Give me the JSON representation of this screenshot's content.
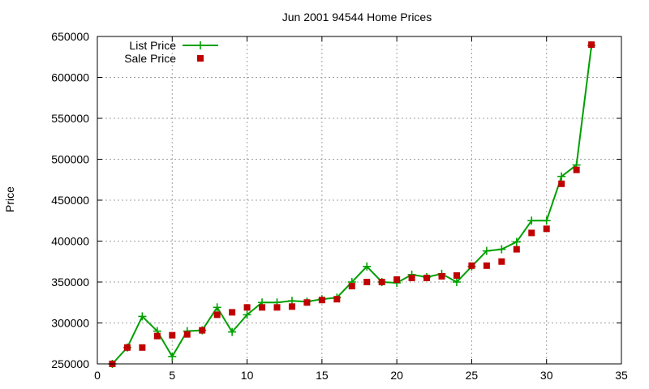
{
  "chart_data": {
    "type": "line",
    "title": "Jun 2001 94544 Home Prices",
    "xlabel": "",
    "ylabel": "Price",
    "xlim": [
      0,
      35
    ],
    "ylim": [
      250000,
      650000
    ],
    "xticks": [
      0,
      5,
      10,
      15,
      20,
      25,
      30,
      35
    ],
    "yticks": [
      250000,
      300000,
      350000,
      400000,
      450000,
      500000,
      550000,
      600000,
      650000
    ],
    "grid": true,
    "legend_position": "top-left",
    "series": [
      {
        "name": "List Price",
        "style": "line-with-plus-markers",
        "color": "#00a000",
        "points": [
          [
            1,
            250000
          ],
          [
            2,
            270000
          ],
          [
            3,
            308000
          ],
          [
            4,
            290000
          ],
          [
            5,
            259000
          ],
          [
            6,
            290000
          ],
          [
            7,
            291000
          ],
          [
            8,
            319000
          ],
          [
            9,
            289000
          ],
          [
            10,
            310000
          ],
          [
            11,
            325000
          ],
          [
            12,
            325000
          ],
          [
            13,
            327000
          ],
          [
            14,
            326000
          ],
          [
            15,
            329000
          ],
          [
            16,
            331000
          ],
          [
            17,
            350000
          ],
          [
            18,
            369000
          ],
          [
            19,
            350000
          ],
          [
            20,
            349000
          ],
          [
            21,
            359000
          ],
          [
            22,
            356000
          ],
          [
            23,
            360000
          ],
          [
            24,
            350000
          ],
          [
            25,
            369000
          ],
          [
            26,
            388000
          ],
          [
            27,
            390000
          ],
          [
            28,
            399000
          ],
          [
            29,
            425000
          ],
          [
            30,
            425000
          ],
          [
            31,
            479000
          ],
          [
            32,
            493000
          ],
          [
            33,
            639000
          ]
        ]
      },
      {
        "name": "Sale Price",
        "style": "square-markers",
        "color": "#c00000",
        "points": [
          [
            1,
            250000
          ],
          [
            2,
            270000
          ],
          [
            3,
            270000
          ],
          [
            4,
            284000
          ],
          [
            5,
            285000
          ],
          [
            6,
            286000
          ],
          [
            7,
            291000
          ],
          [
            8,
            310000
          ],
          [
            9,
            313000
          ],
          [
            10,
            319000
          ],
          [
            11,
            319000
          ],
          [
            12,
            319000
          ],
          [
            13,
            320000
          ],
          [
            14,
            325000
          ],
          [
            15,
            328000
          ],
          [
            16,
            329000
          ],
          [
            17,
            345000
          ],
          [
            18,
            350000
          ],
          [
            19,
            350000
          ],
          [
            20,
            353000
          ],
          [
            21,
            355000
          ],
          [
            22,
            355000
          ],
          [
            23,
            357000
          ],
          [
            24,
            358000
          ],
          [
            25,
            370000
          ],
          [
            26,
            370000
          ],
          [
            27,
            375000
          ],
          [
            28,
            390000
          ],
          [
            29,
            410000
          ],
          [
            30,
            415000
          ],
          [
            31,
            470000
          ],
          [
            32,
            487000
          ],
          [
            33,
            640000
          ]
        ]
      }
    ]
  }
}
